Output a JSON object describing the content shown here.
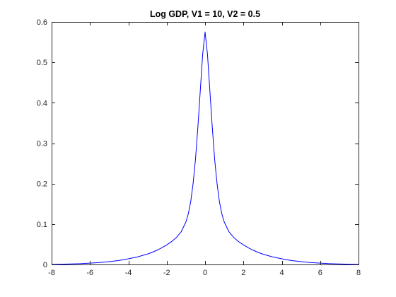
{
  "chart_data": {
    "type": "line",
    "title": "Log GDP, V1 = 10, V2 = 0.5",
    "xlabel": "",
    "ylabel": "",
    "xlim": [
      -8,
      8
    ],
    "ylim": [
      0,
      0.6
    ],
    "grid": false,
    "x_ticks": [
      -8,
      -6,
      -4,
      -2,
      0,
      2,
      4,
      6,
      8
    ],
    "x_tick_labels": [
      "-8",
      "-6",
      "-4",
      "-2",
      "0",
      "2",
      "4",
      "6",
      "8"
    ],
    "y_ticks": [
      0,
      0.1,
      0.2,
      0.3,
      0.4,
      0.5,
      0.6
    ],
    "y_tick_labels": [
      "0",
      "0.1",
      "0.2",
      "0.3",
      "0.4",
      "0.5",
      "0.6"
    ],
    "series": [
      {
        "color": "#0000ff",
        "x": [
          -8,
          -7.5,
          -7,
          -6.5,
          -6,
          -5.5,
          -5,
          -4.5,
          -4,
          -3.5,
          -3,
          -2.75,
          -2.5,
          -2.25,
          -2,
          -1.75,
          -1.5,
          -1.25,
          -1,
          -0.875,
          -0.75,
          -0.625,
          -0.5,
          -0.375,
          -0.25,
          -0.125,
          0,
          0.125,
          0.25,
          0.375,
          0.5,
          0.625,
          0.75,
          0.875,
          1,
          1.25,
          1.5,
          1.75,
          2,
          2.25,
          2.5,
          2.75,
          3,
          3.5,
          4,
          4.5,
          5,
          5.5,
          6,
          6.5,
          7,
          7.5,
          8
        ],
        "y": [
          0.0003,
          0.0006,
          0.0012,
          0.002,
          0.0032,
          0.0048,
          0.007,
          0.0099,
          0.0139,
          0.019,
          0.0258,
          0.0302,
          0.0354,
          0.0414,
          0.0484,
          0.0565,
          0.0665,
          0.0805,
          0.105,
          0.125,
          0.155,
          0.2,
          0.26,
          0.34,
          0.43,
          0.52,
          0.575,
          0.52,
          0.43,
          0.34,
          0.26,
          0.2,
          0.155,
          0.125,
          0.105,
          0.0805,
          0.0665,
          0.0565,
          0.0484,
          0.0414,
          0.0354,
          0.0302,
          0.0258,
          0.019,
          0.0139,
          0.0099,
          0.007,
          0.0048,
          0.0032,
          0.002,
          0.0012,
          0.0006,
          0.0003
        ]
      }
    ]
  }
}
